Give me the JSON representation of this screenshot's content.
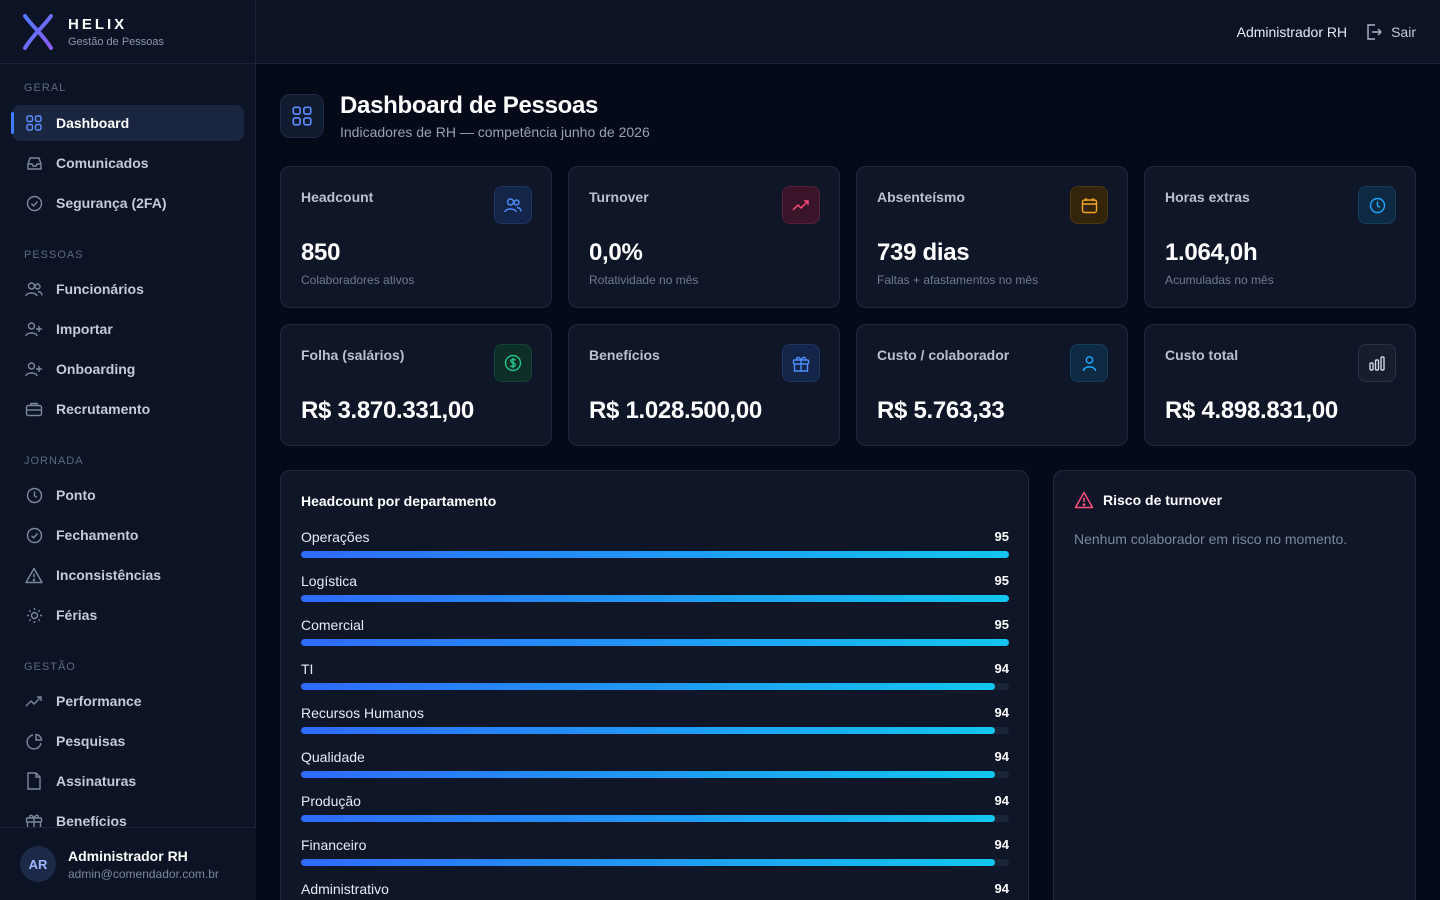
{
  "brand": {
    "name": "HELIX",
    "subtitle": "Gestão de Pessoas"
  },
  "sidebar": {
    "sections": [
      {
        "title": "GERAL",
        "items": [
          {
            "label": "Dashboard",
            "icon": "grid-icon",
            "active": true
          },
          {
            "label": "Comunicados",
            "icon": "inbox-icon"
          },
          {
            "label": "Segurança (2FA)",
            "icon": "check-circle-icon"
          }
        ]
      },
      {
        "title": "PESSOAS",
        "items": [
          {
            "label": "Funcionários",
            "icon": "users-icon"
          },
          {
            "label": "Importar",
            "icon": "user-plus-icon"
          },
          {
            "label": "Onboarding",
            "icon": "user-plus-icon"
          },
          {
            "label": "Recrutamento",
            "icon": "briefcase-icon"
          }
        ]
      },
      {
        "title": "JORNADA",
        "items": [
          {
            "label": "Ponto",
            "icon": "clock-icon"
          },
          {
            "label": "Fechamento",
            "icon": "check-circle-icon"
          },
          {
            "label": "Inconsistências",
            "icon": "warning-icon"
          },
          {
            "label": "Férias",
            "icon": "sun-icon"
          }
        ]
      },
      {
        "title": "GESTÃO",
        "items": [
          {
            "label": "Performance",
            "icon": "trend-icon"
          },
          {
            "label": "Pesquisas",
            "icon": "pie-icon"
          },
          {
            "label": "Assinaturas",
            "icon": "file-icon"
          },
          {
            "label": "Benefícios",
            "icon": "gift-icon"
          }
        ]
      }
    ],
    "user": {
      "initials": "AR",
      "name": "Administrador RH",
      "email": "admin@comendador.com.br"
    }
  },
  "topbar": {
    "user": "Administrador RH",
    "logout_label": "Sair"
  },
  "header": {
    "title": "Dashboard de Pessoas",
    "subtitle": "Indicadores de RH — competência junho de 2026"
  },
  "kpis": [
    {
      "label": "Headcount",
      "value": "850",
      "note": "Colaboradores ativos",
      "icon": "users-icon",
      "color": "#4d8dff"
    },
    {
      "label": "Turnover",
      "value": "0,0%",
      "note": "Rotatividade no mês",
      "icon": "trend-up-icon",
      "color": "#ff4d7d"
    },
    {
      "label": "Absenteísmo",
      "value": "739 dias",
      "note": "Faltas + afastamentos no mês",
      "icon": "calendar-icon",
      "color": "#f5a524"
    },
    {
      "label": "Horas extras",
      "value": "1.064,0h",
      "note": "Acumuladas no mês",
      "icon": "clock-icon",
      "color": "#1ea7ff"
    },
    {
      "label": "Folha (salários)",
      "value": "R$ 3.870.331,00",
      "icon": "dollar-icon",
      "color": "#21c48a"
    },
    {
      "label": "Benefícios",
      "value": "R$ 1.028.500,00",
      "icon": "gift-icon",
      "color": "#4d8dff"
    },
    {
      "label": "Custo / colaborador",
      "value": "R$ 5.763,33",
      "icon": "user-icon",
      "color": "#1ea7ff"
    },
    {
      "label": "Custo total",
      "value": "R$ 4.898.831,00",
      "icon": "bar-chart-icon",
      "color": "#d0d6e2"
    }
  ],
  "departments": {
    "title": "Headcount por departamento",
    "max": 95,
    "items": [
      {
        "name": "Operações",
        "count": 95
      },
      {
        "name": "Logística",
        "count": 95
      },
      {
        "name": "Comercial",
        "count": 95
      },
      {
        "name": "TI",
        "count": 94
      },
      {
        "name": "Recursos Humanos",
        "count": 94
      },
      {
        "name": "Qualidade",
        "count": 94
      },
      {
        "name": "Produção",
        "count": 94
      },
      {
        "name": "Financeiro",
        "count": 94
      },
      {
        "name": "Administrativo",
        "count": 94
      }
    ]
  },
  "risk": {
    "title": "Risco de turnover",
    "message": "Nenhum colaborador em risco no momento.",
    "icon": "warning-icon",
    "color": "#ff4d7d"
  }
}
